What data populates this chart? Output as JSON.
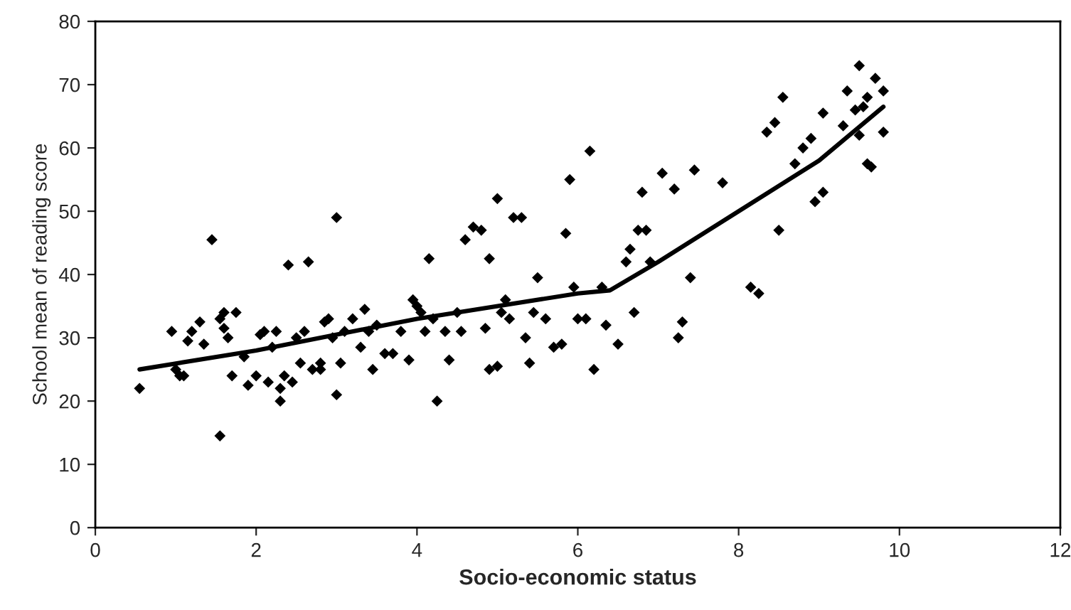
{
  "chart_data": {
    "type": "scatter",
    "xlabel": "Socio-economic status",
    "ylabel": "School mean of reading score",
    "xlim": [
      0,
      12
    ],
    "xticks": [
      0,
      2,
      4,
      6,
      8,
      10,
      12
    ],
    "ylim": [
      0,
      80
    ],
    "yticks": [
      0,
      10,
      20,
      30,
      40,
      50,
      60,
      70,
      80
    ],
    "grid": false,
    "legend": false,
    "series": [
      {
        "color": "#000000",
        "marker": "diamond",
        "x": [
          0.55,
          0.95,
          1.0,
          1.05,
          1.1,
          1.15,
          1.2,
          1.3,
          1.35,
          1.45,
          1.55,
          1.55,
          1.6,
          1.6,
          1.65,
          1.7,
          1.75,
          1.85,
          1.9,
          2.0,
          2.05,
          2.1,
          2.15,
          2.2,
          2.25,
          2.3,
          2.3,
          2.35,
          2.4,
          2.45,
          2.5,
          2.55,
          2.6,
          2.65,
          2.7,
          2.8,
          2.8,
          2.85,
          2.9,
          2.95,
          3.0,
          3.0,
          3.05,
          3.1,
          3.2,
          3.3,
          3.35,
          3.4,
          3.45,
          3.5,
          3.6,
          3.7,
          3.8,
          3.9,
          3.95,
          4.0,
          4.05,
          4.1,
          4.15,
          4.2,
          4.25,
          4.35,
          4.4,
          4.5,
          4.55,
          4.6,
          4.7,
          4.8,
          4.85,
          4.9,
          4.9,
          5.0,
          5.0,
          5.05,
          5.1,
          5.15,
          5.2,
          5.3,
          5.35,
          5.4,
          5.45,
          5.5,
          5.6,
          5.7,
          5.8,
          5.85,
          5.9,
          5.95,
          6.0,
          6.1,
          6.15,
          6.2,
          6.3,
          6.35,
          6.5,
          6.6,
          6.65,
          6.7,
          6.75,
          6.8,
          6.85,
          6.9,
          7.05,
          7.2,
          7.25,
          7.3,
          7.4,
          7.45,
          7.8,
          8.15,
          8.25,
          8.35,
          8.45,
          8.5,
          8.55,
          8.7,
          8.8,
          8.9,
          8.95,
          9.05,
          9.05,
          9.3,
          9.35,
          9.45,
          9.5,
          9.5,
          9.55,
          9.6,
          9.65,
          9.6,
          9.7,
          9.8,
          9.8
        ],
        "values": [
          22,
          31,
          25,
          24,
          24,
          29.5,
          31,
          32.5,
          29,
          45.5,
          14.5,
          33,
          34,
          31.5,
          30,
          24,
          34,
          27,
          22.5,
          24,
          30.5,
          31,
          23,
          28.5,
          31,
          22,
          20,
          24,
          41.5,
          23,
          30,
          26,
          31,
          42,
          25,
          26,
          25,
          32.5,
          33,
          30,
          21,
          49,
          26,
          31,
          33,
          28.5,
          34.5,
          31,
          25,
          32,
          27.5,
          27.5,
          31,
          26.5,
          36,
          35,
          34,
          31,
          42.5,
          33,
          20,
          31,
          26.5,
          34,
          31,
          45.5,
          47.5,
          47,
          31.5,
          42.5,
          25,
          25.5,
          52,
          34,
          36,
          33,
          49,
          49,
          30,
          26,
          34,
          39.5,
          33,
          28.5,
          29,
          46.5,
          55,
          38,
          33,
          33,
          59.5,
          25,
          38,
          32,
          29,
          42,
          44,
          34,
          47,
          53,
          47,
          42,
          56,
          53.5,
          30,
          32.5,
          39.5,
          56.5,
          54.5,
          38,
          37,
          62.5,
          64,
          47,
          68,
          57.5,
          60,
          61.5,
          51.5,
          53,
          65.5,
          63.5,
          69,
          66,
          62,
          73,
          66.5,
          57.5,
          57,
          68,
          71,
          69,
          62.5
        ]
      },
      {
        "type": "line",
        "color": "#000000",
        "marker": "none",
        "line_style": "solid",
        "x": [
          0.55,
          2,
          4,
          6,
          6.4,
          7,
          8,
          9,
          9.8
        ],
        "values": [
          25,
          28,
          33,
          37,
          37.5,
          42,
          50,
          58,
          66.5
        ]
      }
    ]
  }
}
